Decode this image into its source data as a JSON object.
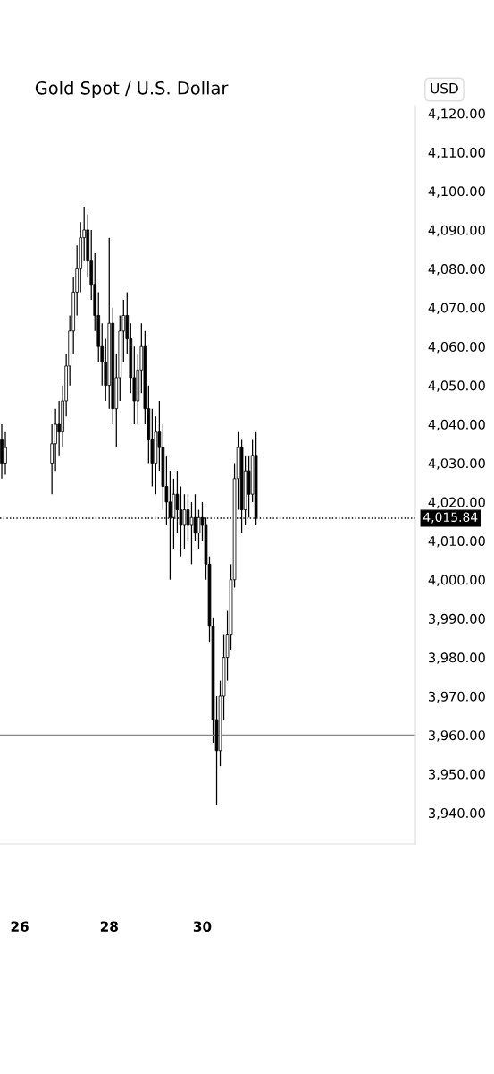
{
  "chart_data": {
    "type": "candlestick",
    "title": "Gold Spot / U.S. Dollar",
    "annotations": [
      "USD"
    ],
    "categories": [
      null,
      null,
      null,
      null,
      null,
      "26",
      null,
      null,
      null,
      null,
      null,
      null,
      null,
      null,
      null,
      null,
      null,
      null,
      null,
      null,
      null,
      null,
      null,
      null,
      null,
      null,
      null,
      null,
      null,
      null,
      "28",
      null,
      null,
      null,
      null,
      null,
      null,
      null,
      null,
      null,
      null,
      null,
      null,
      null,
      null,
      null,
      null,
      null,
      null,
      null,
      null,
      null,
      null,
      null,
      null,
      null,
      "30",
      null,
      null,
      null,
      null,
      null,
      null,
      null,
      null,
      null,
      null,
      null,
      null,
      null,
      null,
      null,
      null,
      null,
      null,
      null,
      null,
      null,
      null,
      null,
      null,
      null,
      null,
      null,
      null,
      null,
      null,
      null,
      null,
      null,
      null,
      null,
      null,
      null,
      null,
      null,
      null,
      null,
      null,
      null,
      null,
      null,
      null,
      null,
      null,
      null,
      null,
      null,
      null,
      null,
      null,
      null,
      null,
      null,
      null,
      null
    ],
    "ohlc": [
      [
        4036,
        4040,
        4026,
        4030
      ],
      [
        4030,
        4038,
        4027,
        4034
      ],
      null,
      null,
      null,
      null,
      null,
      null,
      null,
      null,
      null,
      null,
      null,
      null,
      [
        4030,
        4040,
        4022,
        4035
      ],
      [
        4035,
        4044,
        4028,
        4040
      ],
      [
        4040,
        4046,
        4032,
        4038
      ],
      [
        4038,
        4050,
        4034,
        4046
      ],
      [
        4046,
        4058,
        4042,
        4055
      ],
      [
        4055,
        4068,
        4050,
        4064
      ],
      [
        4064,
        4078,
        4058,
        4074
      ],
      [
        4074,
        4086,
        4068,
        4080
      ],
      [
        4080,
        4092,
        4074,
        4088
      ],
      [
        4088,
        4096,
        4082,
        4090
      ],
      [
        4090,
        4094,
        4078,
        4082
      ],
      [
        4082,
        4090,
        4072,
        4076
      ],
      [
        4076,
        4084,
        4064,
        4068
      ],
      [
        4068,
        4074,
        4056,
        4060
      ],
      [
        4060,
        4066,
        4050,
        4056
      ],
      [
        4056,
        4062,
        4046,
        4050
      ],
      [
        4050,
        4088,
        4044,
        4066
      ],
      [
        4066,
        4070,
        4040,
        4044
      ],
      [
        4044,
        4058,
        4034,
        4052
      ],
      [
        4052,
        4068,
        4046,
        4064
      ],
      [
        4064,
        4072,
        4056,
        4068
      ],
      [
        4068,
        4074,
        4058,
        4062
      ],
      [
        4062,
        4066,
        4048,
        4052
      ],
      [
        4052,
        4060,
        4040,
        4046
      ],
      [
        4046,
        4058,
        4040,
        4054
      ],
      [
        4054,
        4066,
        4048,
        4060
      ],
      [
        4060,
        4064,
        4040,
        4044
      ],
      [
        4044,
        4050,
        4030,
        4036
      ],
      [
        4036,
        4044,
        4024,
        4030
      ],
      [
        4030,
        4042,
        4022,
        4038
      ],
      [
        4038,
        4046,
        4028,
        4034
      ],
      [
        4034,
        4040,
        4018,
        4024
      ],
      [
        4024,
        4032,
        4014,
        4020
      ],
      [
        4020,
        4028,
        4000,
        4016
      ],
      [
        4016,
        4026,
        4008,
        4022
      ],
      [
        4022,
        4028,
        4012,
        4018
      ],
      [
        4018,
        4024,
        4006,
        4014
      ],
      [
        4014,
        4022,
        4008,
        4018
      ],
      [
        4018,
        4022,
        4010,
        4014
      ],
      [
        4014,
        4020,
        4004,
        4016
      ],
      [
        4016,
        4022,
        4010,
        4012
      ],
      [
        4012,
        4018,
        4008,
        4016
      ],
      [
        4016,
        4020,
        4010,
        4014
      ],
      [
        4014,
        4016,
        4000,
        4004
      ],
      [
        4004,
        4006,
        3984,
        3988
      ],
      [
        3988,
        3990,
        3958,
        3964
      ],
      [
        3964,
        3970,
        3942,
        3956
      ],
      [
        3956,
        3974,
        3952,
        3970
      ],
      [
        3970,
        3986,
        3964,
        3980
      ],
      [
        3980,
        3992,
        3974,
        3986
      ],
      [
        3986,
        4004,
        3982,
        4000
      ],
      [
        4000,
        4030,
        3998,
        4026
      ],
      [
        4026,
        4038,
        4018,
        4034
      ],
      [
        4034,
        4036,
        4012,
        4018
      ],
      [
        4018,
        4032,
        4014,
        4028
      ],
      [
        4028,
        4032,
        4016,
        4022
      ],
      [
        4022,
        4036,
        4020,
        4032
      ],
      [
        4032,
        4038,
        4014,
        4016
      ],
      null,
      null,
      null,
      null,
      null,
      null,
      null,
      null,
      null,
      null,
      null,
      null,
      null,
      null,
      null,
      null,
      null,
      null,
      null,
      null,
      null,
      null,
      null,
      null,
      null,
      null,
      null,
      null,
      null,
      null,
      null,
      null,
      null,
      null,
      null,
      null,
      null,
      null,
      null,
      null,
      null,
      null,
      null,
      null
    ],
    "color": "#000000",
    "ylim": [
      3932,
      4122
    ],
    "yticks": [
      {
        "value": 3940,
        "label": "3,940.00"
      },
      {
        "value": 3950,
        "label": "3,950.00"
      },
      {
        "value": 3960,
        "label": "3,960.00"
      },
      {
        "value": 3970,
        "label": "3,970.00"
      },
      {
        "value": 3980,
        "label": "3,980.00"
      },
      {
        "value": 3990,
        "label": "3,990.00"
      },
      {
        "value": 4000,
        "label": "4,000.00"
      },
      {
        "value": 4010,
        "label": "4,010.00"
      },
      {
        "value": 4020,
        "label": "4,020.00"
      },
      {
        "value": 4030,
        "label": "4,030.00"
      },
      {
        "value": 4040,
        "label": "4,040.00"
      },
      {
        "value": 4050,
        "label": "4,050.00"
      },
      {
        "value": 4060,
        "label": "4,060.00"
      },
      {
        "value": 4070,
        "label": "4,070.00"
      },
      {
        "value": 4080,
        "label": "4,080.00"
      },
      {
        "value": 4090,
        "label": "4,090.00"
      },
      {
        "value": 4100,
        "label": "4,100.00"
      },
      {
        "value": 4110,
        "label": "4,110.00"
      },
      {
        "value": 4120,
        "label": "4,120.00"
      }
    ],
    "ref_lines": [
      {
        "axis": "y",
        "value": 4015.84,
        "label": "4,015.84",
        "color": "#000000",
        "line_style": "dotted"
      },
      {
        "axis": "y",
        "value": 3960,
        "label": null,
        "color": "#888888",
        "line_style": "solid"
      }
    ],
    "grid": false,
    "legend": false
  }
}
